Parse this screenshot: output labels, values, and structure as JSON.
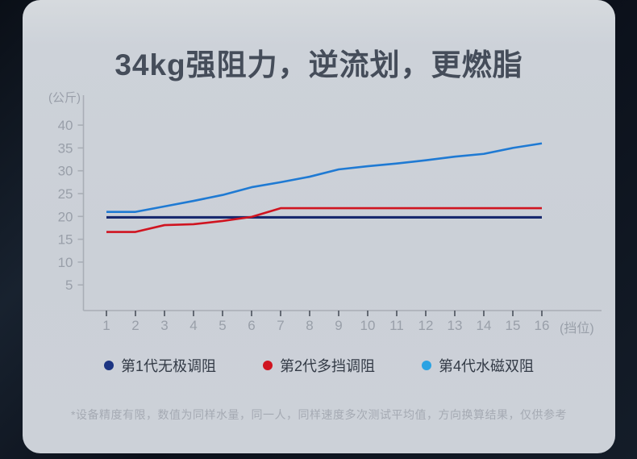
{
  "page": {
    "title": "34kg强阻力，逆流划，更燃脂",
    "footnote": "*设备精度有限，数值为同样水量，同一人，同样速度多次测试平均值，方向换算结果，仅供参考"
  },
  "chart_data": {
    "type": "line",
    "title": "34kg强阻力，逆流划，更燃脂",
    "xlabel": "(挡位)",
    "ylabel": "(公斤)",
    "x": [
      1,
      2,
      3,
      4,
      5,
      6,
      7,
      8,
      9,
      10,
      11,
      12,
      13,
      14,
      15,
      16
    ],
    "yticks": [
      5,
      10,
      15,
      20,
      25,
      30,
      35,
      40
    ],
    "ylim": [
      0,
      46
    ],
    "grid": false,
    "legend_position": "bottom",
    "series": [
      {
        "name": "第1代无极调阻",
        "color": "#18296e",
        "legend_color": "#1c3482",
        "line_width": 3.2,
        "values": [
          19.8,
          19.8,
          19.8,
          19.8,
          19.8,
          19.8,
          19.8,
          19.8,
          19.8,
          19.8,
          19.8,
          19.8,
          19.8,
          19.8,
          19.8,
          19.8
        ]
      },
      {
        "name": "第2代多挡调阻",
        "color": "#d01420",
        "legend_color": "#d01420",
        "line_width": 2.6,
        "values": [
          16.6,
          16.6,
          18.1,
          18.3,
          19.0,
          19.9,
          21.8,
          21.8,
          21.8,
          21.8,
          21.8,
          21.8,
          21.8,
          21.8,
          21.8,
          21.8
        ]
      },
      {
        "name": "第4代水磁双阻",
        "color": "#1f7ad3",
        "legend_color": "#2ba3e3",
        "line_width": 2.6,
        "values": [
          21.0,
          21.0,
          22.2,
          23.4,
          24.7,
          26.4,
          27.5,
          28.7,
          30.3,
          31.0,
          31.6,
          32.3,
          33.1,
          33.7,
          35.0,
          36.0
        ]
      }
    ],
    "axis_color": "#a9aeb6",
    "tick_label_color": "#999fa9"
  }
}
